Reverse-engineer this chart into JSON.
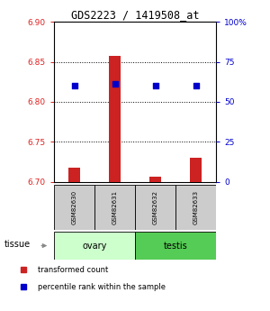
{
  "title": "GDS2223 / 1419508_at",
  "samples": [
    "GSM82630",
    "GSM82631",
    "GSM82632",
    "GSM82633"
  ],
  "tissue_groups": [
    {
      "label": "ovary",
      "indices": [
        0,
        1
      ],
      "color": "#ccffcc"
    },
    {
      "label": "testis",
      "indices": [
        2,
        3
      ],
      "color": "#55cc55"
    }
  ],
  "red_values": [
    6.718,
    6.857,
    6.707,
    6.73
  ],
  "blue_values": [
    6.82,
    6.822,
    6.82,
    6.82
  ],
  "ylim": [
    6.7,
    6.9
  ],
  "yticks_left": [
    6.7,
    6.75,
    6.8,
    6.85,
    6.9
  ],
  "yticks_right_vals": [
    0,
    25,
    50,
    75,
    100
  ],
  "bar_base": 6.7,
  "bar_color": "#cc2222",
  "dot_color": "#0000cc",
  "sample_box_color": "#cccccc",
  "legend_red_label": "transformed count",
  "legend_blue_label": "percentile rank within the sample",
  "left_tick_color": "#dd2222",
  "right_tick_color": "#0000cc",
  "fig_width": 3.0,
  "fig_height": 3.45,
  "dpi": 100
}
